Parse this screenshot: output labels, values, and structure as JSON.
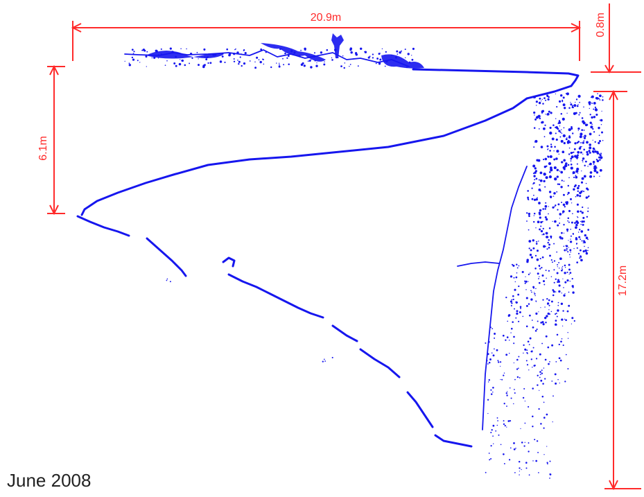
{
  "colors": {
    "scan_points": "#1616ee",
    "dimension": "#ff2a2a",
    "date_text": "#222222"
  },
  "dimensions": {
    "top_width": "20.9m",
    "top_offset": "0.8m",
    "left_height": "6.1m",
    "right_height": "17.2m"
  },
  "date_label": "June 2008"
}
